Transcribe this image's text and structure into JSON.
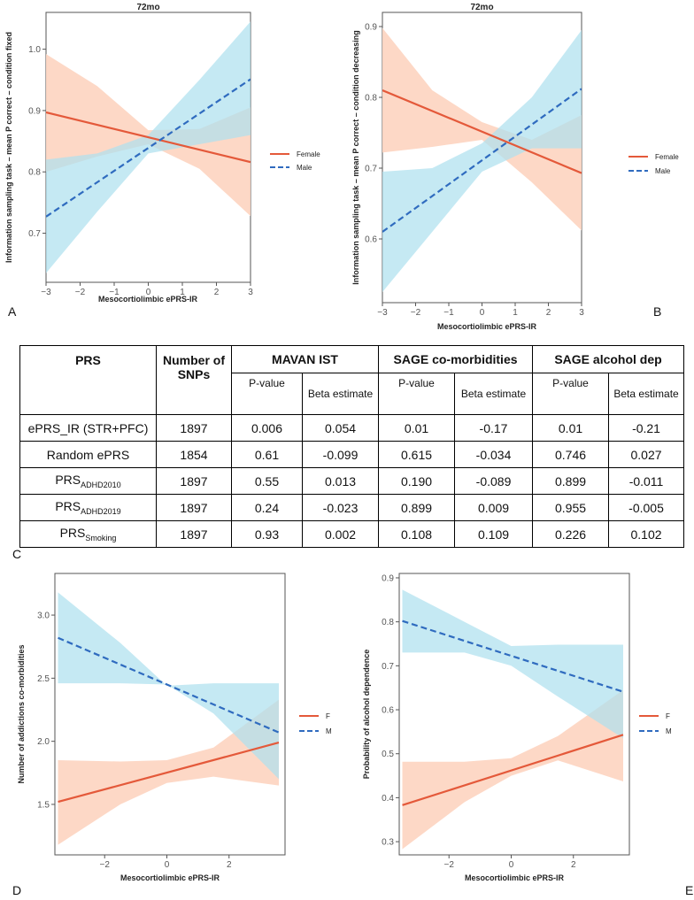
{
  "panel_labels": {
    "a": "A",
    "b": "B",
    "c": "C",
    "d": "D",
    "e": "E"
  },
  "colors": {
    "female": "#e4593a",
    "female_band": "#fdd4c0",
    "male": "#2f6bbf",
    "male_band": "#aee0ee"
  },
  "chart_data": [
    {
      "id": "A",
      "type": "line",
      "title": "72mo",
      "xlabel": "Mesocortiolimbic ePRS-IR",
      "ylabel": "Information sampling task – mean P correct – condition fixed",
      "xlim": [
        -3,
        3
      ],
      "ylim": [
        0.62,
        1.06
      ],
      "xticks": [
        -3,
        -2,
        -1,
        0,
        1,
        2,
        3
      ],
      "yticks": [
        0.7,
        0.8,
        0.9,
        1.0
      ],
      "yticklabels": [
        "0.7",
        "0.8",
        "0.9",
        "1.0"
      ],
      "legend": [
        "Female",
        "Male"
      ],
      "series": [
        {
          "name": "Female",
          "x": [
            -3,
            3
          ],
          "y": [
            0.897,
            0.816
          ],
          "ci_x": [
            -3,
            -1.5,
            0,
            1.5,
            3
          ],
          "ci_lo": [
            0.8,
            0.825,
            0.845,
            0.805,
            0.728
          ],
          "ci_hi": [
            0.992,
            0.94,
            0.868,
            0.87,
            0.905
          ]
        },
        {
          "name": "Male",
          "x": [
            -3,
            3
          ],
          "y": [
            0.727,
            0.951
          ],
          "ci_x": [
            -3,
            -1.5,
            0,
            1.5,
            3
          ],
          "ci_lo": [
            0.635,
            0.735,
            0.83,
            0.845,
            0.86
          ],
          "ci_hi": [
            0.82,
            0.83,
            0.86,
            0.95,
            1.045
          ]
        }
      ]
    },
    {
      "id": "B",
      "type": "line",
      "title": "72mo",
      "xlabel": "Mesocortiolimbic ePRS-IR",
      "ylabel": "Information sampling task – mean P correct – condition decreasing",
      "xlim": [
        -3,
        3
      ],
      "ylim": [
        0.51,
        0.92
      ],
      "xticks": [
        -3,
        -2,
        -1,
        0,
        1,
        2,
        3
      ],
      "yticks": [
        0.6,
        0.7,
        0.8,
        0.9
      ],
      "yticklabels": [
        "0.6",
        "0.7",
        "0.8",
        "0.9"
      ],
      "legend": [
        "Female",
        "Male"
      ],
      "series": [
        {
          "name": "Female",
          "x": [
            -3,
            3
          ],
          "y": [
            0.81,
            0.693
          ],
          "ci_x": [
            -3,
            -1.5,
            0,
            1.5,
            3
          ],
          "ci_lo": [
            0.722,
            0.73,
            0.74,
            0.68,
            0.612
          ],
          "ci_hi": [
            0.898,
            0.81,
            0.765,
            0.74,
            0.775
          ]
        },
        {
          "name": "Male",
          "x": [
            -3,
            3
          ],
          "y": [
            0.61,
            0.812
          ],
          "ci_x": [
            -3,
            -1.5,
            0,
            1.5,
            3
          ],
          "ci_lo": [
            0.525,
            0.61,
            0.695,
            0.728,
            0.728
          ],
          "ci_hi": [
            0.695,
            0.7,
            0.735,
            0.8,
            0.895
          ]
        }
      ]
    },
    {
      "id": "D",
      "type": "line",
      "title": "",
      "xlabel": "Mesocortiolimbic ePRS-IR",
      "ylabel": "Number of addictions co-morbidities",
      "xlim": [
        -3.6,
        3.8
      ],
      "ylim": [
        1.1,
        3.33
      ],
      "xticks": [
        -2,
        0,
        2
      ],
      "yticks": [
        1.5,
        2.0,
        2.5,
        3.0
      ],
      "yticklabels": [
        "1.5",
        "2.0",
        "2.5",
        "3.0"
      ],
      "legend": [
        "F",
        "M"
      ],
      "series": [
        {
          "name": "F",
          "x": [
            -3.5,
            3.6
          ],
          "y": [
            1.52,
            1.99
          ],
          "ci_x": [
            -3.5,
            -1.5,
            0,
            1.5,
            3.6
          ],
          "ci_lo": [
            1.18,
            1.5,
            1.67,
            1.72,
            1.65
          ],
          "ci_hi": [
            1.85,
            1.84,
            1.85,
            1.95,
            2.33
          ]
        },
        {
          "name": "M",
          "x": [
            -3.5,
            3.6
          ],
          "y": [
            2.82,
            2.07
          ],
          "ci_x": [
            -3.5,
            -1.5,
            0,
            1.5,
            3.6
          ],
          "ci_lo": [
            2.46,
            2.46,
            2.45,
            2.22,
            1.7
          ],
          "ci_hi": [
            3.18,
            2.78,
            2.44,
            2.46,
            2.46
          ]
        }
      ]
    },
    {
      "id": "E",
      "type": "line",
      "title": "",
      "xlabel": "Mesocortiolimbic ePRS-IR",
      "ylabel": "Probability of alcohol dependence",
      "xlim": [
        -3.6,
        3.8
      ],
      "ylim": [
        0.27,
        0.91
      ],
      "xticks": [
        -2,
        0,
        2
      ],
      "yticks": [
        0.3,
        0.4,
        0.5,
        0.6,
        0.7,
        0.8,
        0.9
      ],
      "yticklabels": [
        "0.3",
        "0.4",
        "0.5",
        "0.6",
        "0.7",
        "0.8",
        "0.9"
      ],
      "legend": [
        "F",
        "M"
      ],
      "series": [
        {
          "name": "F",
          "x": [
            -3.5,
            3.6
          ],
          "y": [
            0.383,
            0.543
          ],
          "ci_x": [
            -3.5,
            -1.5,
            0,
            1.5,
            3.6
          ],
          "ci_lo": [
            0.283,
            0.39,
            0.45,
            0.485,
            0.437
          ],
          "ci_hi": [
            0.482,
            0.482,
            0.49,
            0.54,
            0.645
          ]
        },
        {
          "name": "M",
          "x": [
            -3.5,
            3.6
          ],
          "y": [
            0.802,
            0.641
          ],
          "ci_x": [
            -3.5,
            -1.5,
            0,
            1.5,
            3.6
          ],
          "ci_lo": [
            0.73,
            0.73,
            0.7,
            0.63,
            0.535
          ],
          "ci_hi": [
            0.873,
            0.8,
            0.745,
            0.748,
            0.748
          ]
        }
      ]
    }
  ],
  "table": {
    "headers": {
      "prs": "PRS",
      "snps": "Number of SNPs",
      "mavan": "MAVAN IST",
      "sage_co": "SAGE co-morbidities",
      "sage_alc": "SAGE alcohol dep"
    },
    "subheaders": {
      "pval": "P-value",
      "beta": "Beta estimate"
    },
    "rows": [
      {
        "prs": "ePRS_IR (STR+PFC)",
        "prs_sub": "",
        "snps": "1897",
        "cells": [
          "0.006",
          "0.054",
          "0.01",
          "-0.17",
          "0.01",
          "-0.21"
        ]
      },
      {
        "prs": "Random ePRS",
        "prs_sub": "",
        "snps": "1854",
        "cells": [
          "0.61",
          "-0.099",
          "0.615",
          "-0.034",
          "0.746",
          "0.027"
        ]
      },
      {
        "prs": "PRS",
        "prs_sub": "ADHD2010",
        "snps": "1897",
        "cells": [
          "0.55",
          "0.013",
          "0.190",
          "-0.089",
          "0.899",
          "-0.011"
        ]
      },
      {
        "prs": "PRS",
        "prs_sub": "ADHD2019",
        "snps": "1897",
        "cells": [
          "0.24",
          "-0.023",
          "0.899",
          "0.009",
          "0.955",
          "-0.005"
        ]
      },
      {
        "prs": "PRS",
        "prs_sub": "Smoking",
        "snps": "1897",
        "cells": [
          "0.93",
          "0.002",
          "0.108",
          "0.109",
          "0.226",
          "0.102"
        ]
      }
    ]
  }
}
